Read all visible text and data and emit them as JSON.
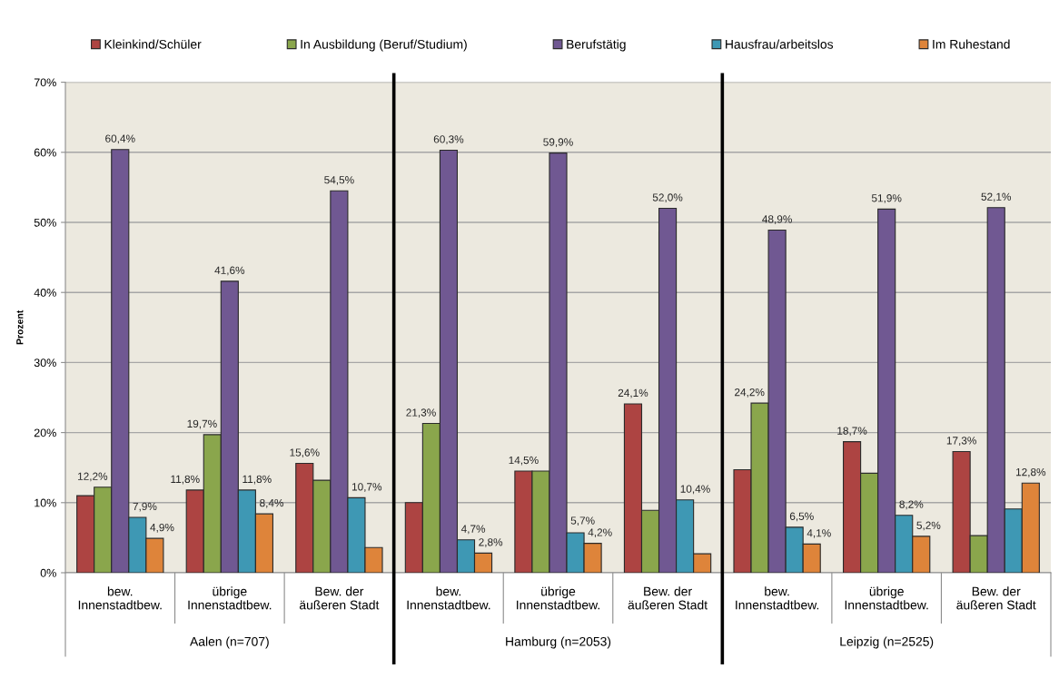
{
  "chart_data": {
    "type": "bar",
    "ylabel": "Prozent",
    "legend": "top",
    "grid": "y",
    "categories": [
      "bew.\nInnenstadtbew.",
      "übrige\nInnenstadtbew.",
      "Bew. der\näußeren Stadt",
      "bew.\nInnenstadtbew.",
      "übrige\nInnenstadtbew.",
      "Bew. der\näußeren Stadt",
      "bew.\nInnenstadtbew.",
      "übrige\nInnenstadtbew.",
      "Bew. der\näußeren Stadt"
    ],
    "annotations": [
      "Aalen (n=707)",
      "Hamburg (n=2053)",
      "Leipzig (n=2525)"
    ],
    "ylim": [
      0,
      70
    ],
    "yticks": [
      {
        "value": 0,
        "label": "0%"
      },
      {
        "value": 10,
        "label": "10%"
      },
      {
        "value": 20,
        "label": "20%"
      },
      {
        "value": 30,
        "label": "30%"
      },
      {
        "value": 40,
        "label": "40%"
      },
      {
        "value": 50,
        "label": "50%"
      },
      {
        "value": 60,
        "label": "60%"
      },
      {
        "value": 70,
        "label": "70%"
      }
    ],
    "series": [
      {
        "name": "Kleinkind/Schüler",
        "color": "#ad4442",
        "values": [
          11.0,
          11.8,
          15.6,
          10.0,
          14.5,
          24.1,
          14.7,
          18.7,
          17.3
        ],
        "value_labels": [
          null,
          "11,8%",
          "15,6%",
          null,
          "14,5%",
          "24,1%",
          null,
          "18,7%",
          "17,3%"
        ]
      },
      {
        "name": "In Ausbildung (Beruf/Studium)",
        "color": "#8aa64c",
        "values": [
          12.2,
          19.7,
          13.2,
          21.3,
          14.5,
          8.9,
          24.2,
          14.2,
          5.3
        ],
        "value_labels": [
          "12,2%",
          "19,7%",
          null,
          "21,3%",
          null,
          null,
          "24,2%",
          null,
          null
        ]
      },
      {
        "name": "Berufstätig",
        "color": "#705892",
        "values": [
          60.4,
          41.6,
          54.5,
          60.3,
          59.9,
          52.0,
          48.9,
          51.9,
          52.1
        ],
        "value_labels": [
          "60,4%",
          "41,6%",
          "54,5%",
          "60,3%",
          "59,9%",
          "52,0%",
          "48,9%",
          "51,9%",
          "52,1%"
        ]
      },
      {
        "name": "Hausfrau/arbeitslos",
        "color": "#3e98b4",
        "values": [
          7.9,
          11.8,
          10.7,
          4.7,
          5.7,
          10.4,
          6.5,
          8.2,
          9.1
        ],
        "value_labels": [
          "7,9%",
          "11,8%",
          "10,7%",
          "4,7%",
          "5,7%",
          "10,4%",
          "6,5%",
          "8,2%",
          null
        ]
      },
      {
        "name": "Im Ruhestand",
        "color": "#de843a",
        "values": [
          4.9,
          8.4,
          3.6,
          2.8,
          4.2,
          2.7,
          4.1,
          5.2,
          12.8
        ],
        "value_labels": [
          "4,9%",
          "8,4%",
          null,
          "2,8%",
          "4,2%",
          null,
          "4,1%",
          "5,2%",
          "12,8%"
        ]
      }
    ]
  }
}
